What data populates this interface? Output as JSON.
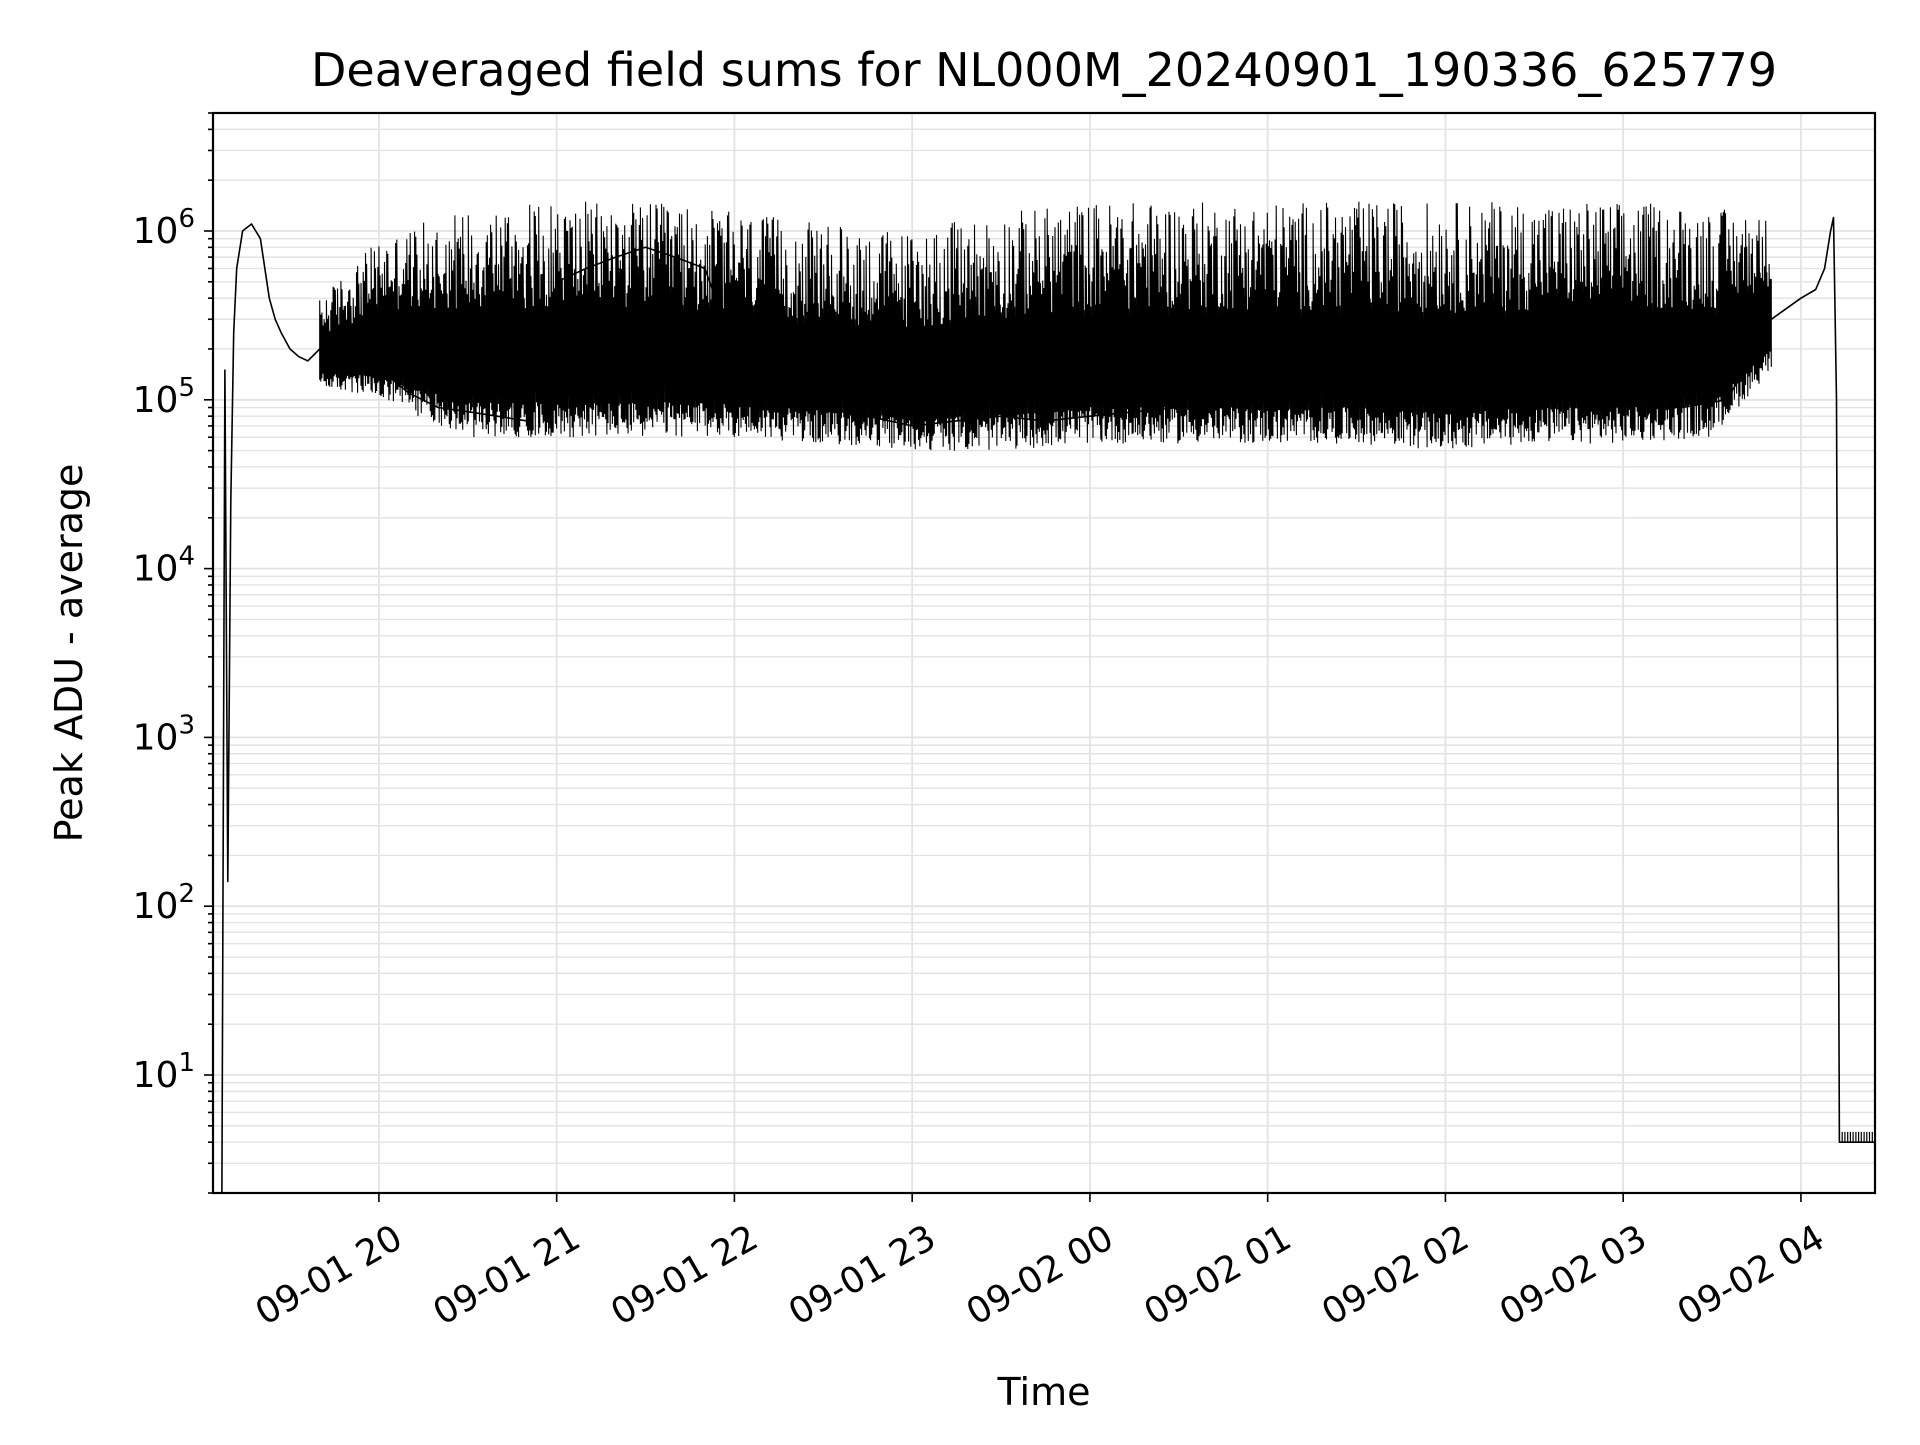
{
  "chart_data": {
    "type": "line",
    "title": "Deaveraged field sums for NL000M_20240901_190336_625779",
    "xlabel": "Time",
    "ylabel": "Peak ADU - average",
    "yscale": "log",
    "ylim": [
      2,
      5000000
    ],
    "xlim": [
      "2024-09-01 19:04",
      "2024-09-02 04:25"
    ],
    "grid": true,
    "x_ticks": [
      {
        "value": "2024-09-01 20:00",
        "label": "09-01 20"
      },
      {
        "value": "2024-09-01 21:00",
        "label": "09-01 21"
      },
      {
        "value": "2024-09-01 22:00",
        "label": "09-01 22"
      },
      {
        "value": "2024-09-01 23:00",
        "label": "09-01 23"
      },
      {
        "value": "2024-09-02 00:00",
        "label": "09-02 00"
      },
      {
        "value": "2024-09-02 01:00",
        "label": "09-02 01"
      },
      {
        "value": "2024-09-02 02:00",
        "label": "09-02 02"
      },
      {
        "value": "2024-09-02 03:00",
        "label": "09-02 03"
      },
      {
        "value": "2024-09-02 04:00",
        "label": "09-02 04"
      }
    ],
    "y_ticks": [
      {
        "value": 10,
        "base": "10",
        "exp": "1"
      },
      {
        "value": 100,
        "base": "10",
        "exp": "2"
      },
      {
        "value": 1000,
        "base": "10",
        "exp": "3"
      },
      {
        "value": 10000,
        "base": "10",
        "exp": "4"
      },
      {
        "value": 100000,
        "base": "10",
        "exp": "5"
      },
      {
        "value": 1000000,
        "base": "10",
        "exp": "6"
      }
    ],
    "line_color": "#000000",
    "grid_color": "#e3e3e3",
    "series": [
      {
        "x": [
          "2024-09-01 19:07",
          "2024-09-01 19:08",
          "2024-09-01 19:09",
          "2024-09-01 19:10",
          "2024-09-01 19:11",
          "2024-09-01 19:12",
          "2024-09-01 19:14",
          "2024-09-01 19:17",
          "2024-09-01 19:20",
          "2024-09-01 19:23",
          "2024-09-01 19:25",
          "2024-09-01 19:27",
          "2024-09-01 19:30",
          "2024-09-01 19:33",
          "2024-09-01 19:36",
          "2024-09-01 19:40",
          "2024-09-01 19:45",
          "2024-09-01 19:50",
          "2024-09-01 19:55",
          "2024-09-01 20:00",
          "2024-09-01 20:05",
          "2024-09-01 20:10",
          "2024-09-01 20:20",
          "2024-09-01 20:30",
          "2024-09-01 20:40",
          "2024-09-01 20:50",
          "2024-09-01 21:00",
          "2024-09-01 21:10",
          "2024-09-01 21:20",
          "2024-09-01 21:30",
          "2024-09-01 21:40",
          "2024-09-01 21:50",
          "2024-09-01 22:00",
          "2024-09-01 22:15",
          "2024-09-01 22:30",
          "2024-09-01 22:45",
          "2024-09-01 23:00",
          "2024-09-01 23:15",
          "2024-09-01 23:30",
          "2024-09-01 23:45",
          "2024-09-02 00:00",
          "2024-09-02 00:30",
          "2024-09-02 01:00",
          "2024-09-02 01:30",
          "2024-09-02 02:00",
          "2024-09-02 02:30",
          "2024-09-02 03:00",
          "2024-09-02 03:20",
          "2024-09-02 03:35",
          "2024-09-02 03:45",
          "2024-09-02 03:50",
          "2024-09-02 04:00",
          "2024-09-02 04:05",
          "2024-09-02 04:08",
          "2024-09-02 04:10",
          "2024-09-02 04:11",
          "2024-09-02 04:12",
          "2024-09-02 04:13",
          "2024-09-02 04:25"
        ],
        "y": [
          2,
          150000,
          140,
          25000,
          250000,
          600000,
          1000000,
          1100000,
          900000,
          400000,
          300000,
          250000,
          200000,
          180000,
          170000,
          200000,
          180000,
          170000,
          180000,
          150000,
          130000,
          110000,
          90000,
          85000,
          80000,
          75000,
          500000,
          600000,
          700000,
          800000,
          700000,
          600000,
          200000,
          120000,
          90000,
          80000,
          70000,
          75000,
          80000,
          75000,
          80000,
          90000,
          95000,
          95000,
          100000,
          95000,
          95000,
          90000,
          100000,
          200000,
          300000,
          400000,
          450000,
          600000,
          1000000,
          1200000,
          100000,
          4,
          4
        ],
        "envelope_x": [
          "2024-09-01 19:40",
          "2024-09-01 20:00",
          "2024-09-01 20:30",
          "2024-09-01 21:00",
          "2024-09-01 21:30",
          "2024-09-01 22:00",
          "2024-09-01 22:30",
          "2024-09-01 23:00",
          "2024-09-01 23:30",
          "2024-09-02 00:00",
          "2024-09-02 00:30",
          "2024-09-02 01:00",
          "2024-09-02 01:30",
          "2024-09-02 02:00",
          "2024-09-02 02:30",
          "2024-09-02 03:00",
          "2024-09-02 03:30",
          "2024-09-02 03:50"
        ],
        "envelope_high": [
          400000,
          900000,
          1400000,
          1500000,
          1500000,
          1300000,
          1100000,
          1000000,
          1300000,
          1500000,
          1500000,
          1500000,
          1500000,
          1500000,
          1500000,
          1500000,
          1400000,
          1200000
        ],
        "envelope_low": [
          120000,
          100000,
          60000,
          60000,
          60000,
          60000,
          55000,
          50000,
          50000,
          55000,
          55000,
          55000,
          55000,
          50000,
          55000,
          55000,
          60000,
          150000
        ]
      }
    ]
  }
}
